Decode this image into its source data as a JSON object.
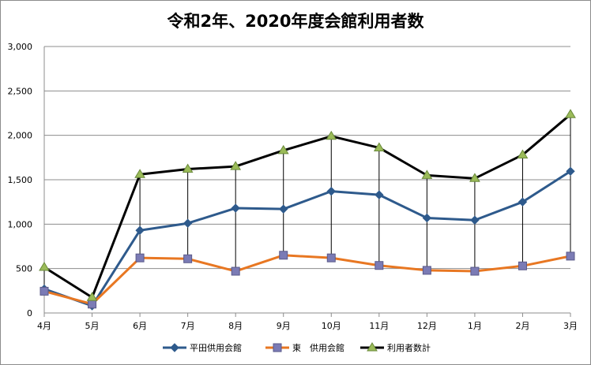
{
  "chart_data": {
    "type": "line",
    "title": "令和2年、2020年度会館利用者数",
    "xlabel": "",
    "ylabel": "",
    "categories": [
      "4月",
      "5月",
      "6月",
      "7月",
      "8月",
      "9月",
      "10月",
      "11月",
      "12月",
      "1月",
      "2月",
      "3月"
    ],
    "ylim": [
      0,
      3000
    ],
    "yticks": [
      0,
      500,
      1000,
      1500,
      2000,
      2500,
      3000
    ],
    "ytick_labels": [
      "0",
      "500",
      "1,000",
      "1,500",
      "2,000",
      "2,500",
      "3,000"
    ],
    "grid": "horizontal",
    "legend_position": "bottom",
    "drop_lines": true,
    "series": [
      {
        "name": "平田供用会館",
        "color": "#2e5a8c",
        "marker": "diamond",
        "values": [
          270,
          80,
          930,
          1010,
          1180,
          1170,
          1370,
          1330,
          1070,
          1045,
          1250,
          1595
        ]
      },
      {
        "name": "東　供用会館",
        "color": "#e87722",
        "marker": "square",
        "values": [
          245,
          100,
          620,
          610,
          470,
          650,
          620,
          535,
          480,
          470,
          530,
          640
        ]
      },
      {
        "name": "利用者数計",
        "color": "#000000",
        "marker": "triangle",
        "values": [
          515,
          175,
          1560,
          1620,
          1650,
          1830,
          1990,
          1860,
          1550,
          1515,
          1780,
          2235
        ]
      }
    ]
  }
}
